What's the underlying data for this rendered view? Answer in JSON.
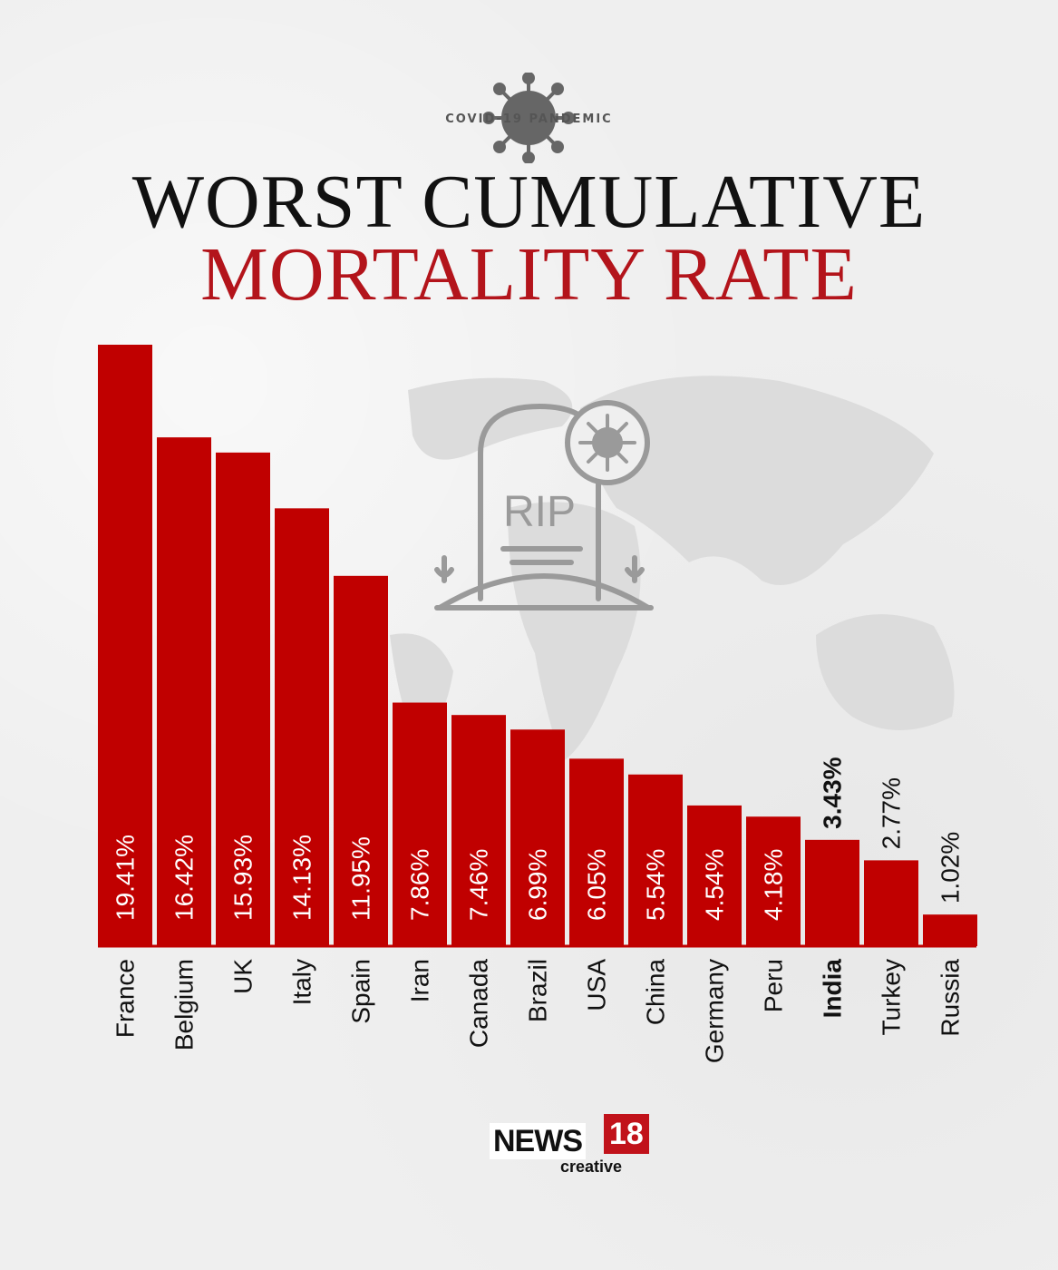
{
  "header": {
    "kicker": "COVID-19 PANDEMIC",
    "title_line1": "WORST CUMULATIVE",
    "title_line2": "MORTALITY RATE"
  },
  "illustration": {
    "tombstone_text": "RIP",
    "icons": [
      "virus-icon",
      "tombstone-icon",
      "world-map"
    ]
  },
  "chart_data": {
    "type": "bar",
    "categories": [
      "France",
      "Belgium",
      "UK",
      "Italy",
      "Spain",
      "Iran",
      "Canada",
      "Brazil",
      "USA",
      "China",
      "Germany",
      "Peru",
      "India",
      "Turkey",
      "Russia"
    ],
    "values": [
      19.41,
      16.42,
      15.93,
      14.13,
      11.95,
      7.86,
      7.46,
      6.99,
      6.05,
      5.54,
      4.54,
      4.18,
      3.43,
      2.77,
      1.02
    ],
    "value_labels": [
      "19.41%",
      "16.42%",
      "15.93%",
      "14.13%",
      "11.95%",
      "7.86%",
      "7.46%",
      "6.99%",
      "6.05%",
      "5.54%",
      "4.54%",
      "4.18%",
      "3.43%",
      "2.77%",
      "1.02%"
    ],
    "highlight": "India",
    "ylim": [
      0,
      19.41
    ],
    "grid": false,
    "legend": "none",
    "title": "",
    "xlabel": "",
    "ylabel": "",
    "colors": {
      "bar": "#c00000",
      "highlight_text": "#111111",
      "label_on_bar": "#ffffff"
    }
  },
  "branding": {
    "logo_main": "NEWS",
    "logo_number": "18",
    "logo_sub": "creative"
  }
}
